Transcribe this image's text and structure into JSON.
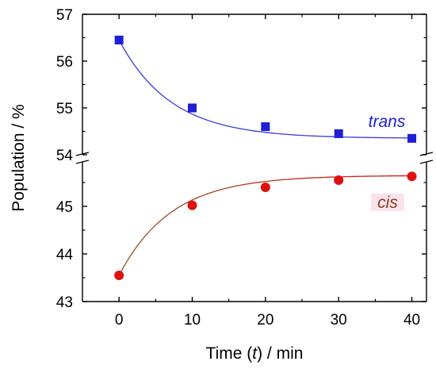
{
  "chart_data": {
    "type": "scatter",
    "xlabel_prefix": "Time (",
    "xlabel_var": "t",
    "xlabel_suffix": ") / min",
    "ylabel": "Population / %",
    "x_ticks": [
      0,
      10,
      20,
      30,
      40
    ],
    "xlim": [
      -5,
      42
    ],
    "y_axis_break": true,
    "upper_panel": {
      "ylim": [
        54,
        57
      ],
      "ticks": [
        54,
        55,
        56,
        57
      ]
    },
    "lower_panel": {
      "ylim": [
        43,
        46
      ],
      "ticks": [
        43,
        44,
        45
      ]
    },
    "series": [
      {
        "name": "trans",
        "panel": "upper",
        "marker": "square",
        "color": "#1f1fd6",
        "fit_color": "#3a3ae0",
        "x": [
          0,
          10,
          20,
          30,
          40
        ],
        "y": [
          56.45,
          55.0,
          54.6,
          54.45,
          54.35
        ],
        "fit": {
          "a": 54.35,
          "b": 2.1,
          "k": 0.14
        }
      },
      {
        "name": "cis",
        "panel": "lower",
        "marker": "circle",
        "color": "#e01010",
        "fit_color": "#e01010",
        "fit_color_end": "#8b5a2b",
        "label_color": "#8b3a1a",
        "label_bg": "#fbe3ee",
        "x": [
          0,
          10,
          20,
          30,
          40
        ],
        "y": [
          43.55,
          45.02,
          45.4,
          45.55,
          45.63
        ],
        "fit": {
          "a": 45.65,
          "b": -2.1,
          "k": 0.14
        }
      }
    ]
  }
}
